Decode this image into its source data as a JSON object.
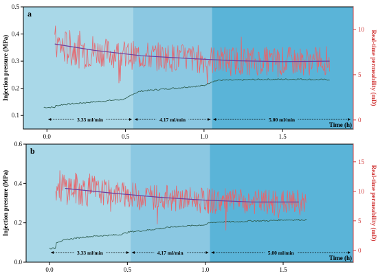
{
  "chart_data": [
    {
      "type": "line",
      "panel_label": "a",
      "xlabel": "Time (h)",
      "ylabel_left": "Injection pressure (MPa)",
      "ylabel_right": "Real-time permeability (mD)",
      "xlim": [
        -0.15,
        1.95
      ],
      "ylim_left": [
        0.05,
        0.5
      ],
      "ylim_right": [
        -1,
        12.5
      ],
      "x_ticks": [
        "0.0",
        "0.5",
        "1.0",
        "1.5"
      ],
      "y_ticks_left": [
        "0.1",
        "0.2",
        "0.3",
        "0.4",
        "0.5"
      ],
      "y_ticks_right": [
        "0",
        "5",
        "10"
      ],
      "phases": [
        {
          "label": "3.33 ml/min",
          "start": 0.0,
          "end": 0.55,
          "color": "#a9d8e8"
        },
        {
          "label": "4.17 ml/min",
          "start": 0.55,
          "end": 1.05,
          "color": "#8bc8e2"
        },
        {
          "label": "5.00 ml/min",
          "start": 1.05,
          "end": 1.95,
          "color": "#5ab4d8"
        }
      ],
      "series": [
        {
          "name": "Injection pressure",
          "axis": "left",
          "color": "#2f5f52",
          "x": [
            -0.02,
            0.05,
            0.05,
            0.1,
            0.2,
            0.3,
            0.4,
            0.5,
            0.55,
            0.6,
            0.7,
            0.8,
            0.9,
            1.0,
            1.05,
            1.1,
            1.2,
            1.3,
            1.4,
            1.5,
            1.6,
            1.7,
            1.8
          ],
          "y": [
            0.13,
            0.13,
            0.135,
            0.14,
            0.145,
            0.15,
            0.155,
            0.16,
            0.18,
            0.19,
            0.195,
            0.2,
            0.205,
            0.21,
            0.225,
            0.23,
            0.23,
            0.232,
            0.233,
            0.233,
            0.234,
            0.232,
            0.232
          ]
        },
        {
          "name": "Real-time permeability",
          "axis": "right",
          "color": "#e8646a",
          "x": [
            0.05,
            0.1,
            0.2,
            0.3,
            0.4,
            0.5,
            0.6,
            0.7,
            0.8,
            0.9,
            1.0,
            1.1,
            1.2,
            1.3,
            1.4,
            1.5,
            1.6,
            1.7,
            1.8
          ],
          "y": [
            8.5,
            8.0,
            7.8,
            7.6,
            7.4,
            7.2,
            7.1,
            7.0,
            6.9,
            6.8,
            6.7,
            6.6,
            6.6,
            6.5,
            6.5,
            6.5,
            6.5,
            6.5,
            6.6
          ],
          "noise": 1.6
        },
        {
          "name": "Permeability trend",
          "axis": "right",
          "color": "#6b3fa0",
          "x": [
            0.05,
            0.3,
            0.6,
            0.9,
            1.2,
            1.5,
            1.8
          ],
          "y": [
            8.4,
            7.7,
            7.1,
            6.8,
            6.55,
            6.45,
            6.5
          ]
        }
      ]
    },
    {
      "type": "line",
      "panel_label": "b",
      "xlabel": "Time (h)",
      "ylabel_left": "Injection pressure (MPa)",
      "ylabel_right": "Real-time permeability (mD)",
      "xlim": [
        -0.15,
        1.95
      ],
      "ylim_left": [
        0.0,
        0.6
      ],
      "ylim_right": [
        -2,
        18
      ],
      "x_ticks": [
        "0.0",
        "0.5",
        "1.0",
        "1.5"
      ],
      "y_ticks_left": [
        "0.0",
        "0.2",
        "0.4",
        "0.6"
      ],
      "y_ticks_right": [
        "0",
        "5",
        "10",
        "15"
      ],
      "phases": [
        {
          "label": "3.33 ml/min",
          "start": 0.0,
          "end": 0.52,
          "color": "#a9d8e8"
        },
        {
          "label": "4.17 ml/min",
          "start": 0.52,
          "end": 1.03,
          "color": "#8bc8e2"
        },
        {
          "label": "5.00 ml/min",
          "start": 1.03,
          "end": 1.95,
          "color": "#5ab4d8"
        }
      ],
      "series": [
        {
          "name": "Injection pressure",
          "axis": "left",
          "color": "#2f5f52",
          "x": [
            0.0,
            0.04,
            0.04,
            0.08,
            0.15,
            0.25,
            0.35,
            0.45,
            0.52,
            0.6,
            0.7,
            0.8,
            0.9,
            1.0,
            1.03,
            1.1,
            1.2,
            1.3,
            1.4,
            1.5,
            1.6,
            1.65
          ],
          "y": [
            0.07,
            0.07,
            0.1,
            0.11,
            0.12,
            0.13,
            0.135,
            0.14,
            0.155,
            0.16,
            0.17,
            0.18,
            0.185,
            0.19,
            0.2,
            0.205,
            0.205,
            0.21,
            0.21,
            0.215,
            0.215,
            0.215
          ]
        },
        {
          "name": "Real-time permeability",
          "axis": "right",
          "color": "#e8646a",
          "x": [
            0.04,
            0.1,
            0.2,
            0.3,
            0.4,
            0.5,
            0.6,
            0.7,
            0.8,
            0.9,
            1.0,
            1.1,
            1.2,
            1.3,
            1.4,
            1.5,
            1.6,
            1.65
          ],
          "y": [
            11.0,
            10.6,
            10.3,
            10.0,
            9.7,
            9.4,
            9.2,
            9.0,
            8.8,
            8.6,
            8.4,
            8.3,
            8.2,
            8.2,
            8.1,
            8.1,
            8.1,
            8.1
          ],
          "noise": 2.2
        },
        {
          "name": "Permeability trend",
          "axis": "right",
          "color": "#6b3fa0",
          "x": [
            0.1,
            0.4,
            0.7,
            1.0,
            1.3,
            1.6
          ],
          "y": [
            10.5,
            9.7,
            9.0,
            8.5,
            8.2,
            8.2
          ]
        }
      ]
    }
  ]
}
